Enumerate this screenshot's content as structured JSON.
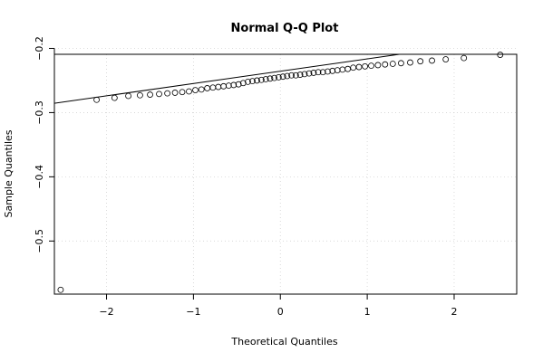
{
  "chart_data": {
    "type": "scatter",
    "title": "Normal Q-Q Plot",
    "xlabel": "Theoretical Quantiles",
    "ylabel": "Sample Quantiles",
    "xlim": [
      -2.6,
      2.72
    ],
    "ylim": [
      -0.5827,
      -0.2092
    ],
    "x_ticks": [
      -2,
      -1,
      0,
      1,
      2
    ],
    "x_tick_labels": [
      "−2",
      "−1",
      "0",
      "1",
      "2"
    ],
    "y_ticks": [
      -0.2,
      -0.3,
      -0.4,
      -0.5
    ],
    "y_tick_labels": [
      "−0.2",
      "−0.3",
      "−0.4",
      "−0.5"
    ],
    "grid": true,
    "reference_line": {
      "slope": 0.0192,
      "intercept": -0.2355
    },
    "series": [
      {
        "x": [
          -2.528,
          -2.114,
          -1.908,
          -1.749,
          -1.615,
          -1.499,
          -1.395,
          -1.3,
          -1.212,
          -1.129,
          -1.051,
          -0.978,
          -0.908,
          -0.841,
          -0.776,
          -0.714,
          -0.653,
          -0.594,
          -0.537,
          -0.481,
          -0.427,
          -0.373,
          -0.321,
          -0.269,
          -0.218,
          -0.168,
          -0.118,
          -0.069,
          -0.02,
          0.03,
          0.079,
          0.129,
          0.178,
          0.228,
          0.279,
          0.331,
          0.383,
          0.436,
          0.49,
          0.545,
          0.6,
          0.657,
          0.715,
          0.776,
          0.839,
          0.905,
          0.974,
          1.046,
          1.123,
          1.205,
          1.294,
          1.389,
          1.494,
          1.611,
          1.745,
          1.903,
          2.112,
          2.53
        ],
        "y": [
          -0.576,
          -0.28,
          -0.277,
          -0.274,
          -0.273,
          -0.272,
          -0.271,
          -0.27,
          -0.269,
          -0.268,
          -0.267,
          -0.265,
          -0.264,
          -0.262,
          -0.261,
          -0.26,
          -0.259,
          -0.258,
          -0.257,
          -0.256,
          -0.254,
          -0.252,
          -0.251,
          -0.25,
          -0.249,
          -0.248,
          -0.247,
          -0.246,
          -0.245,
          -0.244,
          -0.243,
          -0.242,
          -0.242,
          -0.241,
          -0.24,
          -0.239,
          -0.238,
          -0.237,
          -0.237,
          -0.236,
          -0.235,
          -0.234,
          -0.233,
          -0.232,
          -0.23,
          -0.229,
          -0.228,
          -0.227,
          -0.226,
          -0.225,
          -0.224,
          -0.223,
          -0.222,
          -0.22,
          -0.219,
          -0.217,
          -0.215,
          -0.21
        ]
      }
    ]
  }
}
